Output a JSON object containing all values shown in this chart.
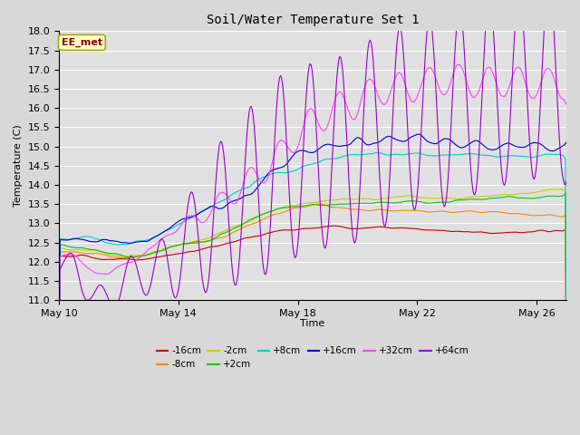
{
  "title": "Soil/Water Temperature Set 1",
  "ylabel": "Temperature (C)",
  "xlabel": "Time",
  "annotation": "EE_met",
  "ylim": [
    11.0,
    18.0
  ],
  "yticks": [
    11.0,
    11.5,
    12.0,
    12.5,
    13.0,
    13.5,
    14.0,
    14.5,
    15.0,
    15.5,
    16.0,
    16.5,
    17.0,
    17.5,
    18.0
  ],
  "xtick_labels": [
    "May 10",
    "May 14",
    "May 18",
    "May 22",
    "May 26"
  ],
  "xtick_positions": [
    0,
    4,
    8,
    12,
    16
  ],
  "series": [
    {
      "label": "-16cm",
      "color": "#cc0000"
    },
    {
      "label": "-8cm",
      "color": "#ff8800"
    },
    {
      "label": "-2cm",
      "color": "#cccc00"
    },
    {
      "label": "+2cm",
      "color": "#00cc00"
    },
    {
      "label": "+8cm",
      "color": "#00cccc"
    },
    {
      "label": "+16cm",
      "color": "#0000cc"
    },
    {
      "label": "+32cm",
      "color": "#ff44ff"
    },
    {
      "label": "+64cm",
      "color": "#9900cc"
    }
  ],
  "bg_color": "#d8d8d8",
  "plot_bg_color": "#e0e0e0",
  "grid_color": "#ffffff",
  "n_points": 500,
  "end_day": 17.0,
  "figsize": [
    6.4,
    4.8
  ],
  "dpi": 100
}
